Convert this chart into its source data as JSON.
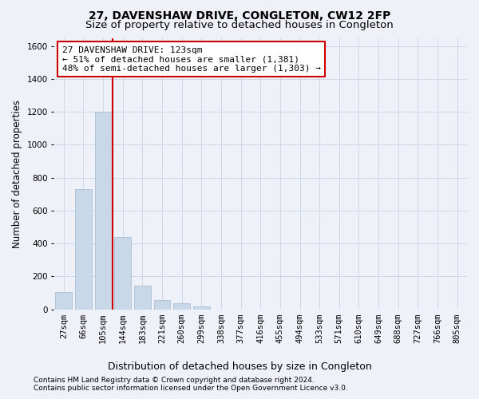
{
  "title": "27, DAVENSHAW DRIVE, CONGLETON, CW12 2FP",
  "subtitle": "Size of property relative to detached houses in Congleton",
  "xlabel": "Distribution of detached houses by size in Congleton",
  "ylabel": "Number of detached properties",
  "bar_labels": [
    "27sqm",
    "66sqm",
    "105sqm",
    "144sqm",
    "183sqm",
    "221sqm",
    "260sqm",
    "299sqm",
    "338sqm",
    "377sqm",
    "416sqm",
    "455sqm",
    "494sqm",
    "533sqm",
    "571sqm",
    "610sqm",
    "649sqm",
    "688sqm",
    "727sqm",
    "766sqm",
    "805sqm"
  ],
  "bar_values": [
    105,
    730,
    1200,
    440,
    145,
    55,
    35,
    20,
    0,
    0,
    0,
    0,
    0,
    0,
    0,
    0,
    0,
    0,
    0,
    0,
    0
  ],
  "bar_color": "#c8d8e8",
  "bar_edge_color": "#a0b8cc",
  "grid_color": "#d0d8e8",
  "background_color": "#eef2f8",
  "vline_x": 2.5,
  "vline_color": "#cc0000",
  "annotation_text": "27 DAVENSHAW DRIVE: 123sqm\n← 51% of detached houses are smaller (1,381)\n48% of semi-detached houses are larger (1,303) →",
  "annotation_box_color": "#ffffff",
  "annotation_box_edge": "#cc0000",
  "ylim": [
    0,
    1650
  ],
  "yticks": [
    0,
    200,
    400,
    600,
    800,
    1000,
    1200,
    1400,
    1600
  ],
  "footer1": "Contains HM Land Registry data © Crown copyright and database right 2024.",
  "footer2": "Contains public sector information licensed under the Open Government Licence v3.0.",
  "title_fontsize": 10,
  "subtitle_fontsize": 9.5,
  "xlabel_fontsize": 9,
  "ylabel_fontsize": 8.5,
  "tick_fontsize": 7.5,
  "annotation_fontsize": 8,
  "footer_fontsize": 6.5
}
